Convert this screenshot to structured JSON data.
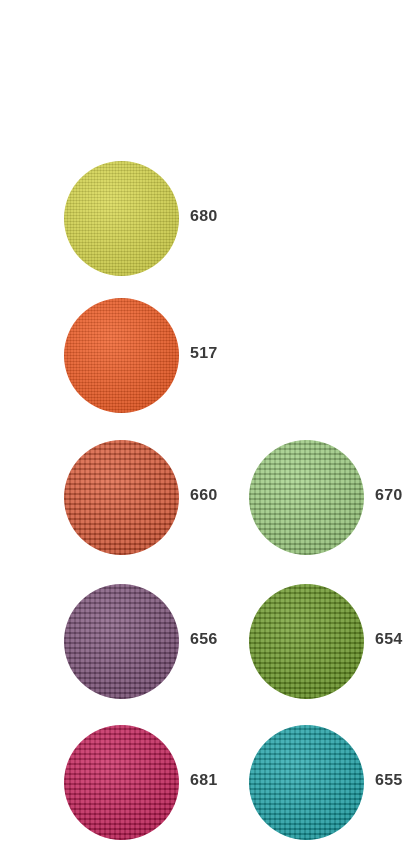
{
  "swatches": [
    {
      "code": "680",
      "color": "#d6d64a",
      "texture": "fine"
    },
    {
      "code": "517",
      "color": "#f05a22",
      "texture": "fine"
    },
    {
      "code": "660",
      "color": "#dd5531",
      "texture": "coarse"
    },
    {
      "code": "670",
      "color": "#9ccf7e",
      "texture": "coarse"
    },
    {
      "code": "656",
      "color": "#7c4f78",
      "texture": "coarse"
    },
    {
      "code": "654",
      "color": "#6a9a22",
      "texture": "coarse"
    },
    {
      "code": "681",
      "color": "#c81855",
      "texture": "coarse"
    },
    {
      "code": "655",
      "color": "#15a3a8",
      "texture": "coarse"
    }
  ]
}
